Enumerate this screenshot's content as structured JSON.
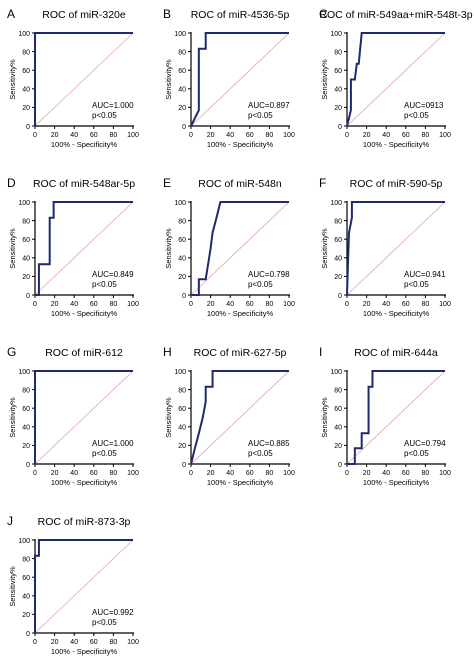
{
  "chart_data": [
    {
      "type": "line",
      "panel_letter": "A",
      "title": "ROC of miR-320e",
      "xlabel": "100% - Specificity%",
      "ylabel": "Sensitivity%",
      "xlim": [
        0,
        100
      ],
      "ylim": [
        0,
        100
      ],
      "x_ticks": [
        "0",
        "20",
        "40",
        "60",
        "80",
        "100"
      ],
      "y_ticks": [
        "0",
        "20",
        "40",
        "60",
        "80",
        "100"
      ],
      "auc_text": "AUC=1.000",
      "p_text": "p<0.05",
      "reference_line": true,
      "x": [
        0,
        0,
        100
      ],
      "y": [
        0,
        100,
        100
      ]
    },
    {
      "type": "line",
      "panel_letter": "B",
      "title": "ROC of miR-4536-5p",
      "xlabel": "100% - Specificity%",
      "ylabel": "Sensitivity%",
      "xlim": [
        0,
        100
      ],
      "ylim": [
        0,
        100
      ],
      "x_ticks": [
        "0",
        "20",
        "40",
        "60",
        "80",
        "100"
      ],
      "y_ticks": [
        "0",
        "20",
        "40",
        "60",
        "80",
        "100"
      ],
      "auc_text": "AUC=0.897",
      "p_text": "p<0.05",
      "reference_line": true,
      "x": [
        0,
        8,
        8,
        15,
        15,
        100
      ],
      "y": [
        0,
        17,
        83,
        83,
        100,
        100
      ]
    },
    {
      "type": "line",
      "panel_letter": "C",
      "title": "ROC of miR-549aa+miR-548t-3p",
      "xlabel": "100% - Specificity%",
      "ylabel": "Sensitivity%",
      "xlim": [
        0,
        100
      ],
      "ylim": [
        0,
        100
      ],
      "x_ticks": [
        "0",
        "20",
        "40",
        "60",
        "80",
        "100"
      ],
      "y_ticks": [
        "0",
        "20",
        "40",
        "60",
        "80",
        "100"
      ],
      "auc_text": "AUC=0913",
      "p_text": "p<0.05",
      "reference_line": true,
      "x": [
        0,
        4,
        4,
        8,
        10,
        12,
        15,
        100
      ],
      "y": [
        0,
        17,
        50,
        50,
        67,
        67,
        100,
        100
      ]
    },
    {
      "type": "line",
      "panel_letter": "D",
      "title": "ROC of miR-548ar-5p",
      "xlabel": "100% - Specificity%",
      "ylabel": "Sensitivity%",
      "xlim": [
        0,
        100
      ],
      "ylim": [
        0,
        100
      ],
      "x_ticks": [
        "0",
        "20",
        "40",
        "60",
        "80",
        "100"
      ],
      "y_ticks": [
        "0",
        "20",
        "40",
        "60",
        "80",
        "100"
      ],
      "auc_text": "AUC=0.849",
      "p_text": "p<0.05",
      "reference_line": true,
      "x": [
        0,
        4,
        4,
        15,
        15,
        19,
        19,
        100
      ],
      "y": [
        0,
        0,
        33,
        33,
        83,
        83,
        100,
        100
      ]
    },
    {
      "type": "line",
      "panel_letter": "E",
      "title": "ROC of miR-548n",
      "xlabel": "100% - Specificity%",
      "ylabel": "Sensitivity%",
      "xlim": [
        0,
        100
      ],
      "ylim": [
        0,
        100
      ],
      "x_ticks": [
        "0",
        "20",
        "40",
        "60",
        "80",
        "100"
      ],
      "y_ticks": [
        "0",
        "20",
        "40",
        "60",
        "80",
        "100"
      ],
      "auc_text": "AUC=0.798",
      "p_text": "p<0.05",
      "reference_line": true,
      "x": [
        0,
        8,
        8,
        15,
        20,
        22,
        26,
        26,
        30,
        30,
        100
      ],
      "y": [
        0,
        0,
        17,
        17,
        50,
        67,
        83,
        83,
        100,
        100,
        100
      ]
    },
    {
      "type": "line",
      "panel_letter": "F",
      "title": "ROC of miR-590-5p",
      "xlabel": "100% - Specificity%",
      "ylabel": "Sensitivity%",
      "xlim": [
        0,
        100
      ],
      "ylim": [
        0,
        100
      ],
      "x_ticks": [
        "0",
        "20",
        "40",
        "60",
        "80",
        "100"
      ],
      "y_ticks": [
        "0",
        "20",
        "40",
        "60",
        "80",
        "100"
      ],
      "auc_text": "AUC=0.941",
      "p_text": "p<0.05",
      "reference_line": true,
      "x": [
        0,
        0,
        2,
        5,
        5,
        100
      ],
      "y": [
        0,
        0,
        67,
        83,
        100,
        100
      ]
    },
    {
      "type": "line",
      "panel_letter": "G",
      "title": "ROC of miR-612",
      "xlabel": "100% - Specificity%",
      "ylabel": "Sensitivity%",
      "xlim": [
        0,
        100
      ],
      "ylim": [
        0,
        100
      ],
      "x_ticks": [
        "0",
        "20",
        "40",
        "60",
        "80",
        "100"
      ],
      "y_ticks": [
        "0",
        "20",
        "40",
        "60",
        "80",
        "100"
      ],
      "auc_text": "AUC=1.000",
      "p_text": "p<0.05",
      "reference_line": true,
      "x": [
        0,
        0,
        100
      ],
      "y": [
        0,
        100,
        100
      ]
    },
    {
      "type": "line",
      "panel_letter": "H",
      "title": "ROC of miR-627-5p",
      "xlabel": "100% - Specificity%",
      "ylabel": "Sensitivity%",
      "xlim": [
        0,
        100
      ],
      "ylim": [
        0,
        100
      ],
      "x_ticks": [
        "0",
        "20",
        "40",
        "60",
        "80",
        "100"
      ],
      "y_ticks": [
        "0",
        "20",
        "40",
        "60",
        "80",
        "100"
      ],
      "auc_text": "AUC=0.885",
      "p_text": "p<0.05",
      "reference_line": true,
      "x": [
        0,
        4,
        8,
        12,
        15,
        15,
        22,
        22,
        100
      ],
      "y": [
        0,
        17,
        33,
        50,
        67,
        83,
        83,
        100,
        100
      ]
    },
    {
      "type": "line",
      "panel_letter": "I",
      "title": "ROC of miR-644a",
      "xlabel": "100% - Specificity%",
      "ylabel": "Sensitivity%",
      "xlim": [
        0,
        100
      ],
      "ylim": [
        0,
        100
      ],
      "x_ticks": [
        "0",
        "20",
        "40",
        "60",
        "80",
        "100"
      ],
      "y_ticks": [
        "0",
        "20",
        "40",
        "60",
        "80",
        "100"
      ],
      "auc_text": "AUC=0.794",
      "p_text": "p<0.05",
      "reference_line": true,
      "x": [
        0,
        8,
        8,
        15,
        15,
        22,
        22,
        26,
        26,
        30,
        30,
        100
      ],
      "y": [
        0,
        0,
        17,
        17,
        33,
        33,
        83,
        83,
        100,
        100,
        100,
        100
      ]
    },
    {
      "type": "line",
      "panel_letter": "J",
      "title": "ROC of miR-873-3p",
      "xlabel": "100% - Specificity%",
      "ylabel": "Sensitivity%",
      "xlim": [
        0,
        100
      ],
      "ylim": [
        0,
        100
      ],
      "x_ticks": [
        "0",
        "20",
        "40",
        "60",
        "80",
        "100"
      ],
      "y_ticks": [
        "0",
        "20",
        "40",
        "60",
        "80",
        "100"
      ],
      "auc_text": "AUC=0.992",
      "p_text": "p<0.05",
      "reference_line": true,
      "x": [
        0,
        0,
        4,
        4,
        100
      ],
      "y": [
        0,
        83,
        83,
        100,
        100
      ]
    }
  ],
  "colors": {
    "roc_curve": "#1f2a6e",
    "reference_line": "#e6a1a8",
    "axis": "#000000"
  }
}
